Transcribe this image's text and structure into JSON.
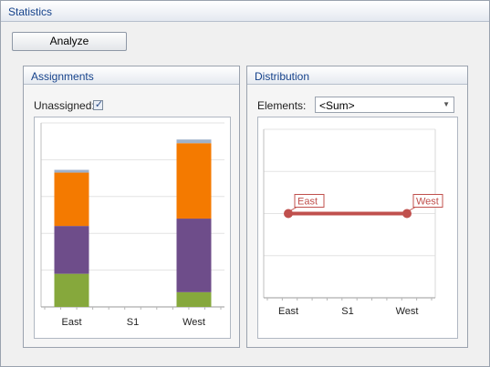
{
  "window": {
    "title": "Statistics"
  },
  "toolbar": {
    "analyze_label": "Analyze"
  },
  "assignments": {
    "title": "Assignments",
    "unassigned_label": "Unassigned:",
    "unassigned_checked": true
  },
  "distribution": {
    "title": "Distribution",
    "elements_label": "Elements:",
    "elements_value": "<Sum>"
  },
  "colors": {
    "orange": "#f47a00",
    "purple": "#6e4d8a",
    "green": "#86a83c",
    "unassigned": "#9fb2cc",
    "line": "#c0504d"
  },
  "chart_data": [
    {
      "type": "bar",
      "stacked": true,
      "categories": [
        "East",
        "S1",
        "West"
      ],
      "ylim": [
        0,
        100
      ],
      "grid": true,
      "series": [
        {
          "values": [
            18,
            0,
            8
          ],
          "color": "#86a83c"
        },
        {
          "values": [
            26,
            0,
            40
          ],
          "color": "#6e4d8a"
        },
        {
          "values": [
            29,
            0,
            41
          ],
          "color": "#f47a00"
        },
        {
          "values": [
            1.5,
            0,
            2
          ],
          "color": "#9fb2cc"
        }
      ]
    },
    {
      "type": "line",
      "categories": [
        "East",
        "S1",
        "West"
      ],
      "ylim": [
        0,
        100
      ],
      "grid": true,
      "points": [
        {
          "x": "East",
          "y": 50,
          "label": "East"
        },
        {
          "x": "West",
          "y": 50,
          "label": "West"
        }
      ],
      "color": "#c0504d"
    }
  ]
}
